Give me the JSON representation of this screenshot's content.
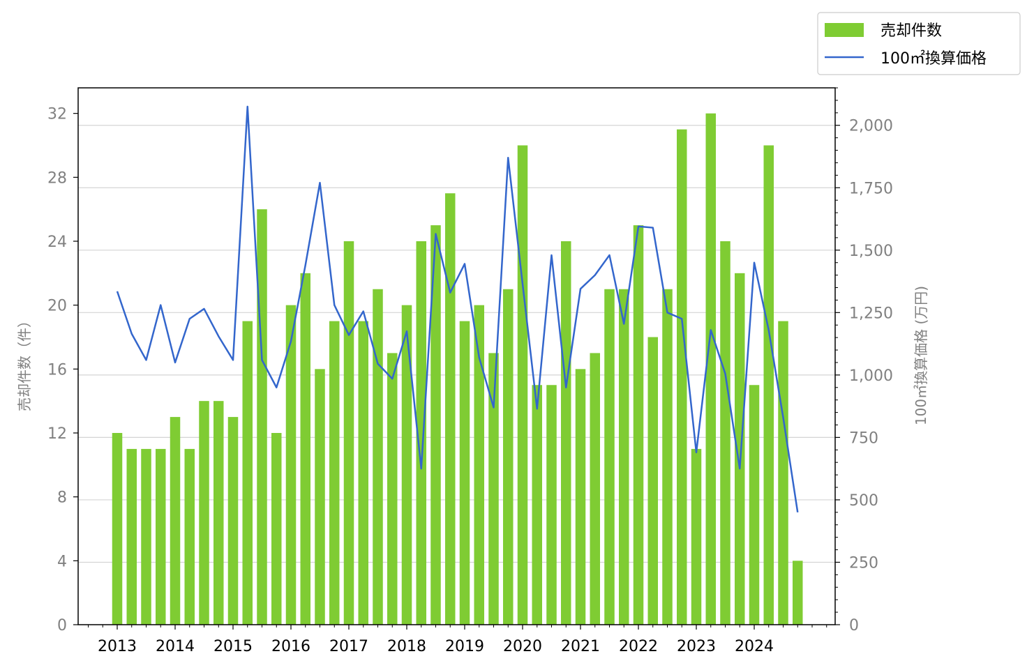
{
  "chart_data": {
    "type": "bar",
    "x": [
      "2013Q1",
      "2013Q2",
      "2013Q3",
      "2013Q4",
      "2014Q1",
      "2014Q2",
      "2014Q3",
      "2014Q4",
      "2015Q1",
      "2015Q2",
      "2015Q3",
      "2015Q4",
      "2016Q1",
      "2016Q2",
      "2016Q3",
      "2016Q4",
      "2017Q1",
      "2017Q2",
      "2017Q3",
      "2017Q4",
      "2018Q1",
      "2018Q2",
      "2018Q3",
      "2018Q4",
      "2019Q1",
      "2019Q2",
      "2019Q3",
      "2019Q4",
      "2020Q1",
      "2020Q2",
      "2020Q3",
      "2020Q4",
      "2021Q1",
      "2021Q2",
      "2021Q3",
      "2021Q4",
      "2022Q1",
      "2022Q2",
      "2022Q3",
      "2022Q4",
      "2023Q1",
      "2023Q2",
      "2023Q3",
      "2023Q4",
      "2024Q1",
      "2024Q2",
      "2024Q3",
      "2024Q4"
    ],
    "series": [
      {
        "name": "売却件数",
        "type": "bar",
        "axis": "left",
        "color": "#7fcc33",
        "values": [
          12,
          11,
          11,
          11,
          13,
          11,
          14,
          14,
          13,
          19,
          26,
          12,
          20,
          22,
          16,
          19,
          24,
          19,
          21,
          17,
          20,
          24,
          25,
          27,
          19,
          20,
          17,
          21,
          30,
          15,
          15,
          24,
          16,
          17,
          21,
          21,
          25,
          18,
          21,
          31,
          11,
          32,
          24,
          22,
          15,
          30,
          19,
          4
        ]
      },
      {
        "name": "100㎡換算価格",
        "type": "line",
        "axis": "right",
        "color": "#3366cc",
        "values": [
          1335,
          1165,
          1060,
          1280,
          1050,
          1225,
          1265,
          1155,
          1060,
          2075,
          1060,
          950,
          1135,
          1440,
          1770,
          1280,
          1160,
          1255,
          1045,
          985,
          1175,
          625,
          1565,
          1330,
          1445,
          1070,
          870,
          1870,
          1365,
          865,
          1480,
          950,
          1345,
          1400,
          1480,
          1205,
          1595,
          1590,
          1250,
          1225,
          690,
          1180,
          1005,
          625,
          1450,
          1180,
          830,
          450
        ]
      }
    ],
    "xticks": [
      "2013",
      "2014",
      "2015",
      "2016",
      "2017",
      "2018",
      "2019",
      "2020",
      "2021",
      "2022",
      "2023",
      "2024"
    ],
    "yticks_left": [
      "0",
      "4",
      "8",
      "12",
      "16",
      "20",
      "24",
      "28",
      "32"
    ],
    "yticks_right": [
      "0",
      "250",
      "500",
      "750",
      "1,000",
      "1,250",
      "1,500",
      "1,750",
      "2,000"
    ],
    "ylabel_left": "売却件数（件）",
    "ylabel_right": "100㎡換算価格 (万円)",
    "ylim_left": [
      0,
      33.6
    ],
    "ylim_right": [
      0,
      2150
    ],
    "grid": "horizontal (right axis)",
    "legend": "top-right, outside plot"
  }
}
